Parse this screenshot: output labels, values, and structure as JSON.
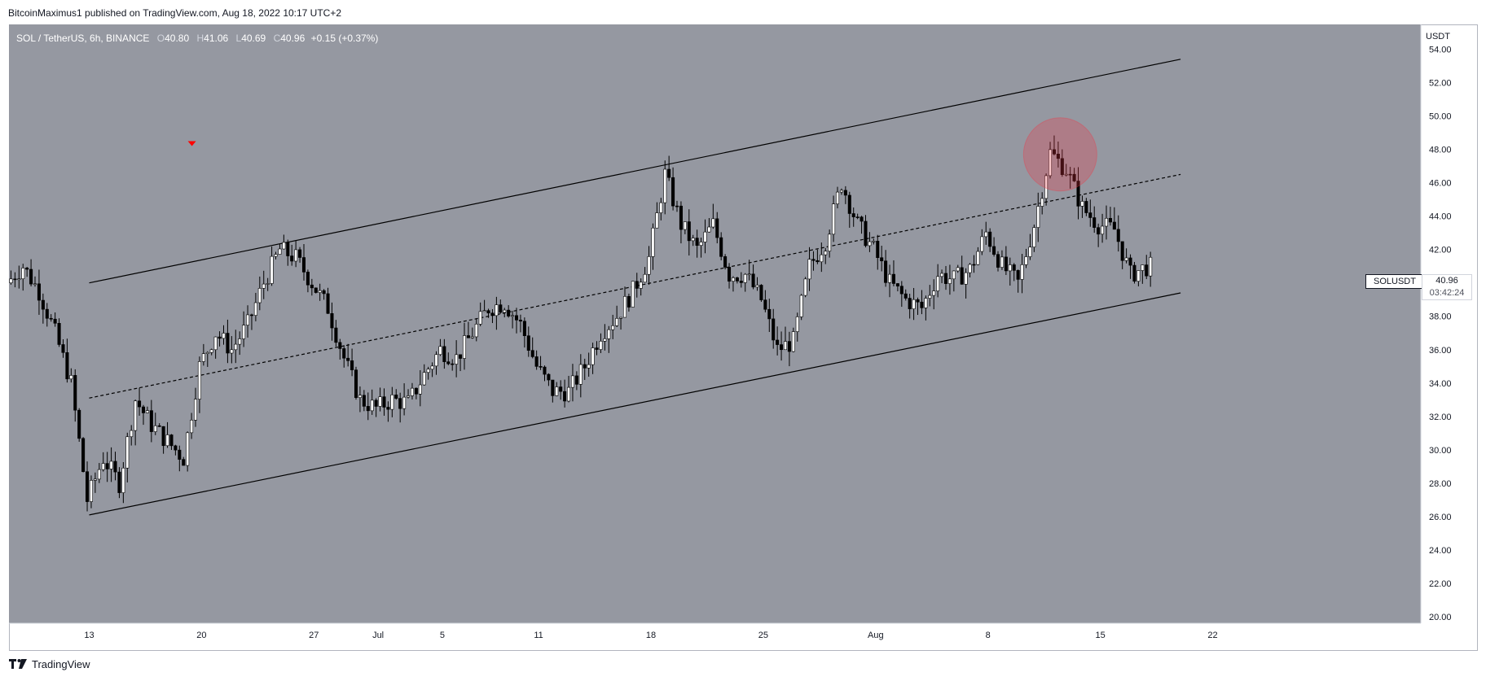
{
  "header": {
    "credit": "BitcoinMaximus1 published on TradingView.com, Aug 18, 2022 10:17 UTC+2"
  },
  "legend": {
    "symbol": "SOL / TetherUS, 6h, BINANCE",
    "open_key": "O",
    "open": "40.80",
    "high_key": "H",
    "high": "41.06",
    "low_key": "L",
    "low": "40.69",
    "close_key": "C",
    "close": "40.96",
    "change": "+0.15 (+0.37%)"
  },
  "price_scale": {
    "unit": "USDT"
  },
  "last_price": {
    "ticker": "SOLUSDT",
    "price": "40.96",
    "countdown": "03:42:24"
  },
  "footer": {
    "brand": "TradingView"
  },
  "colors": {
    "plot_bg": "#9598a1",
    "up": "#ffffff",
    "down": "#000000",
    "channel": "#000000",
    "marker": "#ff0000",
    "circle": "#f23645"
  },
  "chart_data": {
    "type": "candlestick",
    "ylim": [
      20,
      55
    ],
    "yticks": [
      "54.00",
      "52.00",
      "50.00",
      "48.00",
      "46.00",
      "44.00",
      "42.00",
      "40.00",
      "38.00",
      "36.00",
      "34.00",
      "32.00",
      "30.00",
      "28.00",
      "26.00",
      "24.00",
      "22.00",
      "20.00"
    ],
    "x_ticks": [
      "13",
      "20",
      "27",
      "Jul",
      "5",
      "11",
      "18",
      "25",
      "Aug",
      "8",
      "15",
      "22"
    ],
    "x_start": "2022-06-08",
    "interval_hours": 6,
    "channel": {
      "upper": [
        [
          "2022-06-13",
          40.0
        ],
        [
          "2022-08-20",
          53.4
        ]
      ],
      "lower": [
        [
          "2022-06-13",
          26.1
        ],
        [
          "2022-08-20",
          39.4
        ]
      ],
      "middle": [
        [
          "2022-06-13",
          33.1
        ],
        [
          "2022-08-20",
          46.5
        ]
      ]
    },
    "markers": [
      {
        "type": "arrow-down",
        "date": "2022-06-19",
        "price": 48.3
      }
    ],
    "highlight": {
      "date": "2022-08-12",
      "price": 47.7
    },
    "anchors": [
      [
        "2022-06-08",
        40.0
      ],
      [
        "2022-06-09",
        41.0
      ],
      [
        "2022-06-10",
        39.5
      ],
      [
        "2022-06-11",
        37.0
      ],
      [
        "2022-06-12",
        34.0
      ],
      [
        "2022-06-13",
        27.0
      ],
      [
        "2022-06-14",
        29.5
      ],
      [
        "2022-06-15",
        28.0
      ],
      [
        "2022-06-16",
        33.0
      ],
      [
        "2022-06-17",
        31.5
      ],
      [
        "2022-06-18",
        30.5
      ],
      [
        "2022-06-19",
        29.5
      ],
      [
        "2022-06-20",
        35.0
      ],
      [
        "2022-06-21",
        37.0
      ],
      [
        "2022-06-22",
        36.0
      ],
      [
        "2022-06-23",
        37.5
      ],
      [
        "2022-06-24",
        40.0
      ],
      [
        "2022-06-25",
        42.0
      ],
      [
        "2022-06-26",
        41.5
      ],
      [
        "2022-06-27",
        40.0
      ],
      [
        "2022-06-28",
        38.5
      ],
      [
        "2022-06-29",
        35.5
      ],
      [
        "2022-06-30",
        33.0
      ],
      [
        "2022-07-01",
        32.5
      ],
      [
        "2022-07-02",
        33.0
      ],
      [
        "2022-07-03",
        32.8
      ],
      [
        "2022-07-04",
        34.5
      ],
      [
        "2022-07-05",
        36.0
      ],
      [
        "2022-07-06",
        35.5
      ],
      [
        "2022-07-07",
        37.0
      ],
      [
        "2022-07-08",
        38.5
      ],
      [
        "2022-07-09",
        38.8
      ],
      [
        "2022-07-10",
        37.5
      ],
      [
        "2022-07-11",
        35.0
      ],
      [
        "2022-07-12",
        33.5
      ],
      [
        "2022-07-13",
        33.5
      ],
      [
        "2022-07-14",
        35.0
      ],
      [
        "2022-07-15",
        37.0
      ],
      [
        "2022-07-16",
        38.0
      ],
      [
        "2022-07-17",
        39.5
      ],
      [
        "2022-07-18",
        41.5
      ],
      [
        "2022-07-19",
        46.5
      ],
      [
        "2022-07-20",
        43.5
      ],
      [
        "2022-07-21",
        42.0
      ],
      [
        "2022-07-22",
        43.5
      ],
      [
        "2022-07-23",
        40.5
      ],
      [
        "2022-07-24",
        40.5
      ],
      [
        "2022-07-25",
        39.0
      ],
      [
        "2022-07-26",
        36.0
      ],
      [
        "2022-07-27",
        36.5
      ],
      [
        "2022-07-28",
        41.0
      ],
      [
        "2022-07-29",
        42.5
      ],
      [
        "2022-07-30",
        46.0
      ],
      [
        "2022-07-31",
        43.5
      ],
      [
        "2022-08-01",
        42.0
      ],
      [
        "2022-08-02",
        40.0
      ],
      [
        "2022-08-03",
        39.0
      ],
      [
        "2022-08-04",
        38.5
      ],
      [
        "2022-08-05",
        40.5
      ],
      [
        "2022-08-06",
        40.2
      ],
      [
        "2022-08-07",
        40.8
      ],
      [
        "2022-08-08",
        43.0
      ],
      [
        "2022-08-09",
        41.0
      ],
      [
        "2022-08-10",
        40.0
      ],
      [
        "2022-08-11",
        43.5
      ],
      [
        "2022-08-12",
        47.8
      ],
      [
        "2022-08-13",
        46.8
      ],
      [
        "2022-08-14",
        44.5
      ],
      [
        "2022-08-15",
        43.5
      ],
      [
        "2022-08-16",
        43.2
      ],
      [
        "2022-08-17",
        40.5
      ],
      [
        "2022-08-18",
        40.96
      ]
    ]
  }
}
